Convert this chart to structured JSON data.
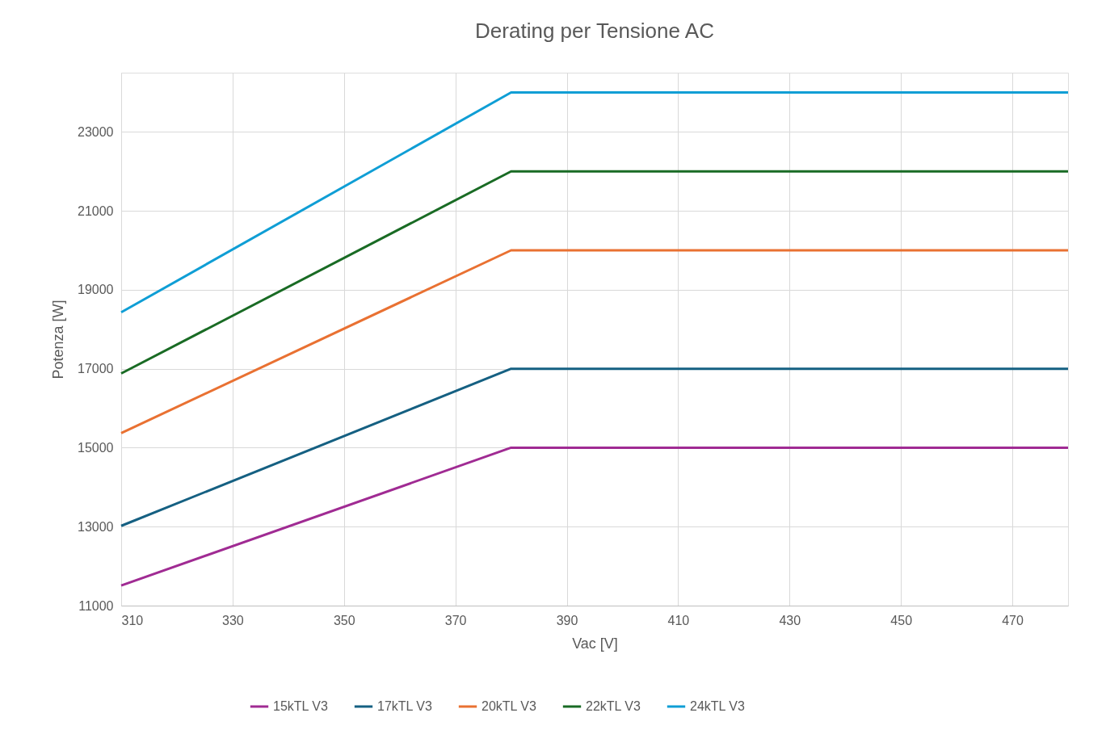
{
  "chart_data": {
    "type": "line",
    "title": "Derating per Tensione AC",
    "xlabel": "Vac [V]",
    "ylabel": "Potenza [W]",
    "x": [
      310,
      380,
      480
    ],
    "series": [
      {
        "name": "15kTL V3",
        "color": "#a02b93",
        "values": [
          11510,
          15000,
          15000
        ]
      },
      {
        "name": "17kTL V3",
        "color": "#156082",
        "values": [
          13020,
          17000,
          17000
        ]
      },
      {
        "name": "20kTL V3",
        "color": "#e97132",
        "values": [
          15370,
          20000,
          20000
        ]
      },
      {
        "name": "22kTL V3",
        "color": "#196b24",
        "values": [
          16880,
          22000,
          22000
        ]
      },
      {
        "name": "24kTL V3",
        "color": "#0f9ed5",
        "values": [
          18430,
          24000,
          24000
        ]
      }
    ],
    "xlim": [
      310,
      480
    ],
    "xticks": [
      310,
      330,
      350,
      370,
      390,
      410,
      430,
      450,
      470
    ],
    "ylim": [
      11000,
      24500
    ],
    "yticks": [
      11000,
      13000,
      15000,
      17000,
      19000,
      21000,
      23000
    ],
    "grid": true,
    "legend": "bottom",
    "marker": "none",
    "line_style": "solid"
  }
}
